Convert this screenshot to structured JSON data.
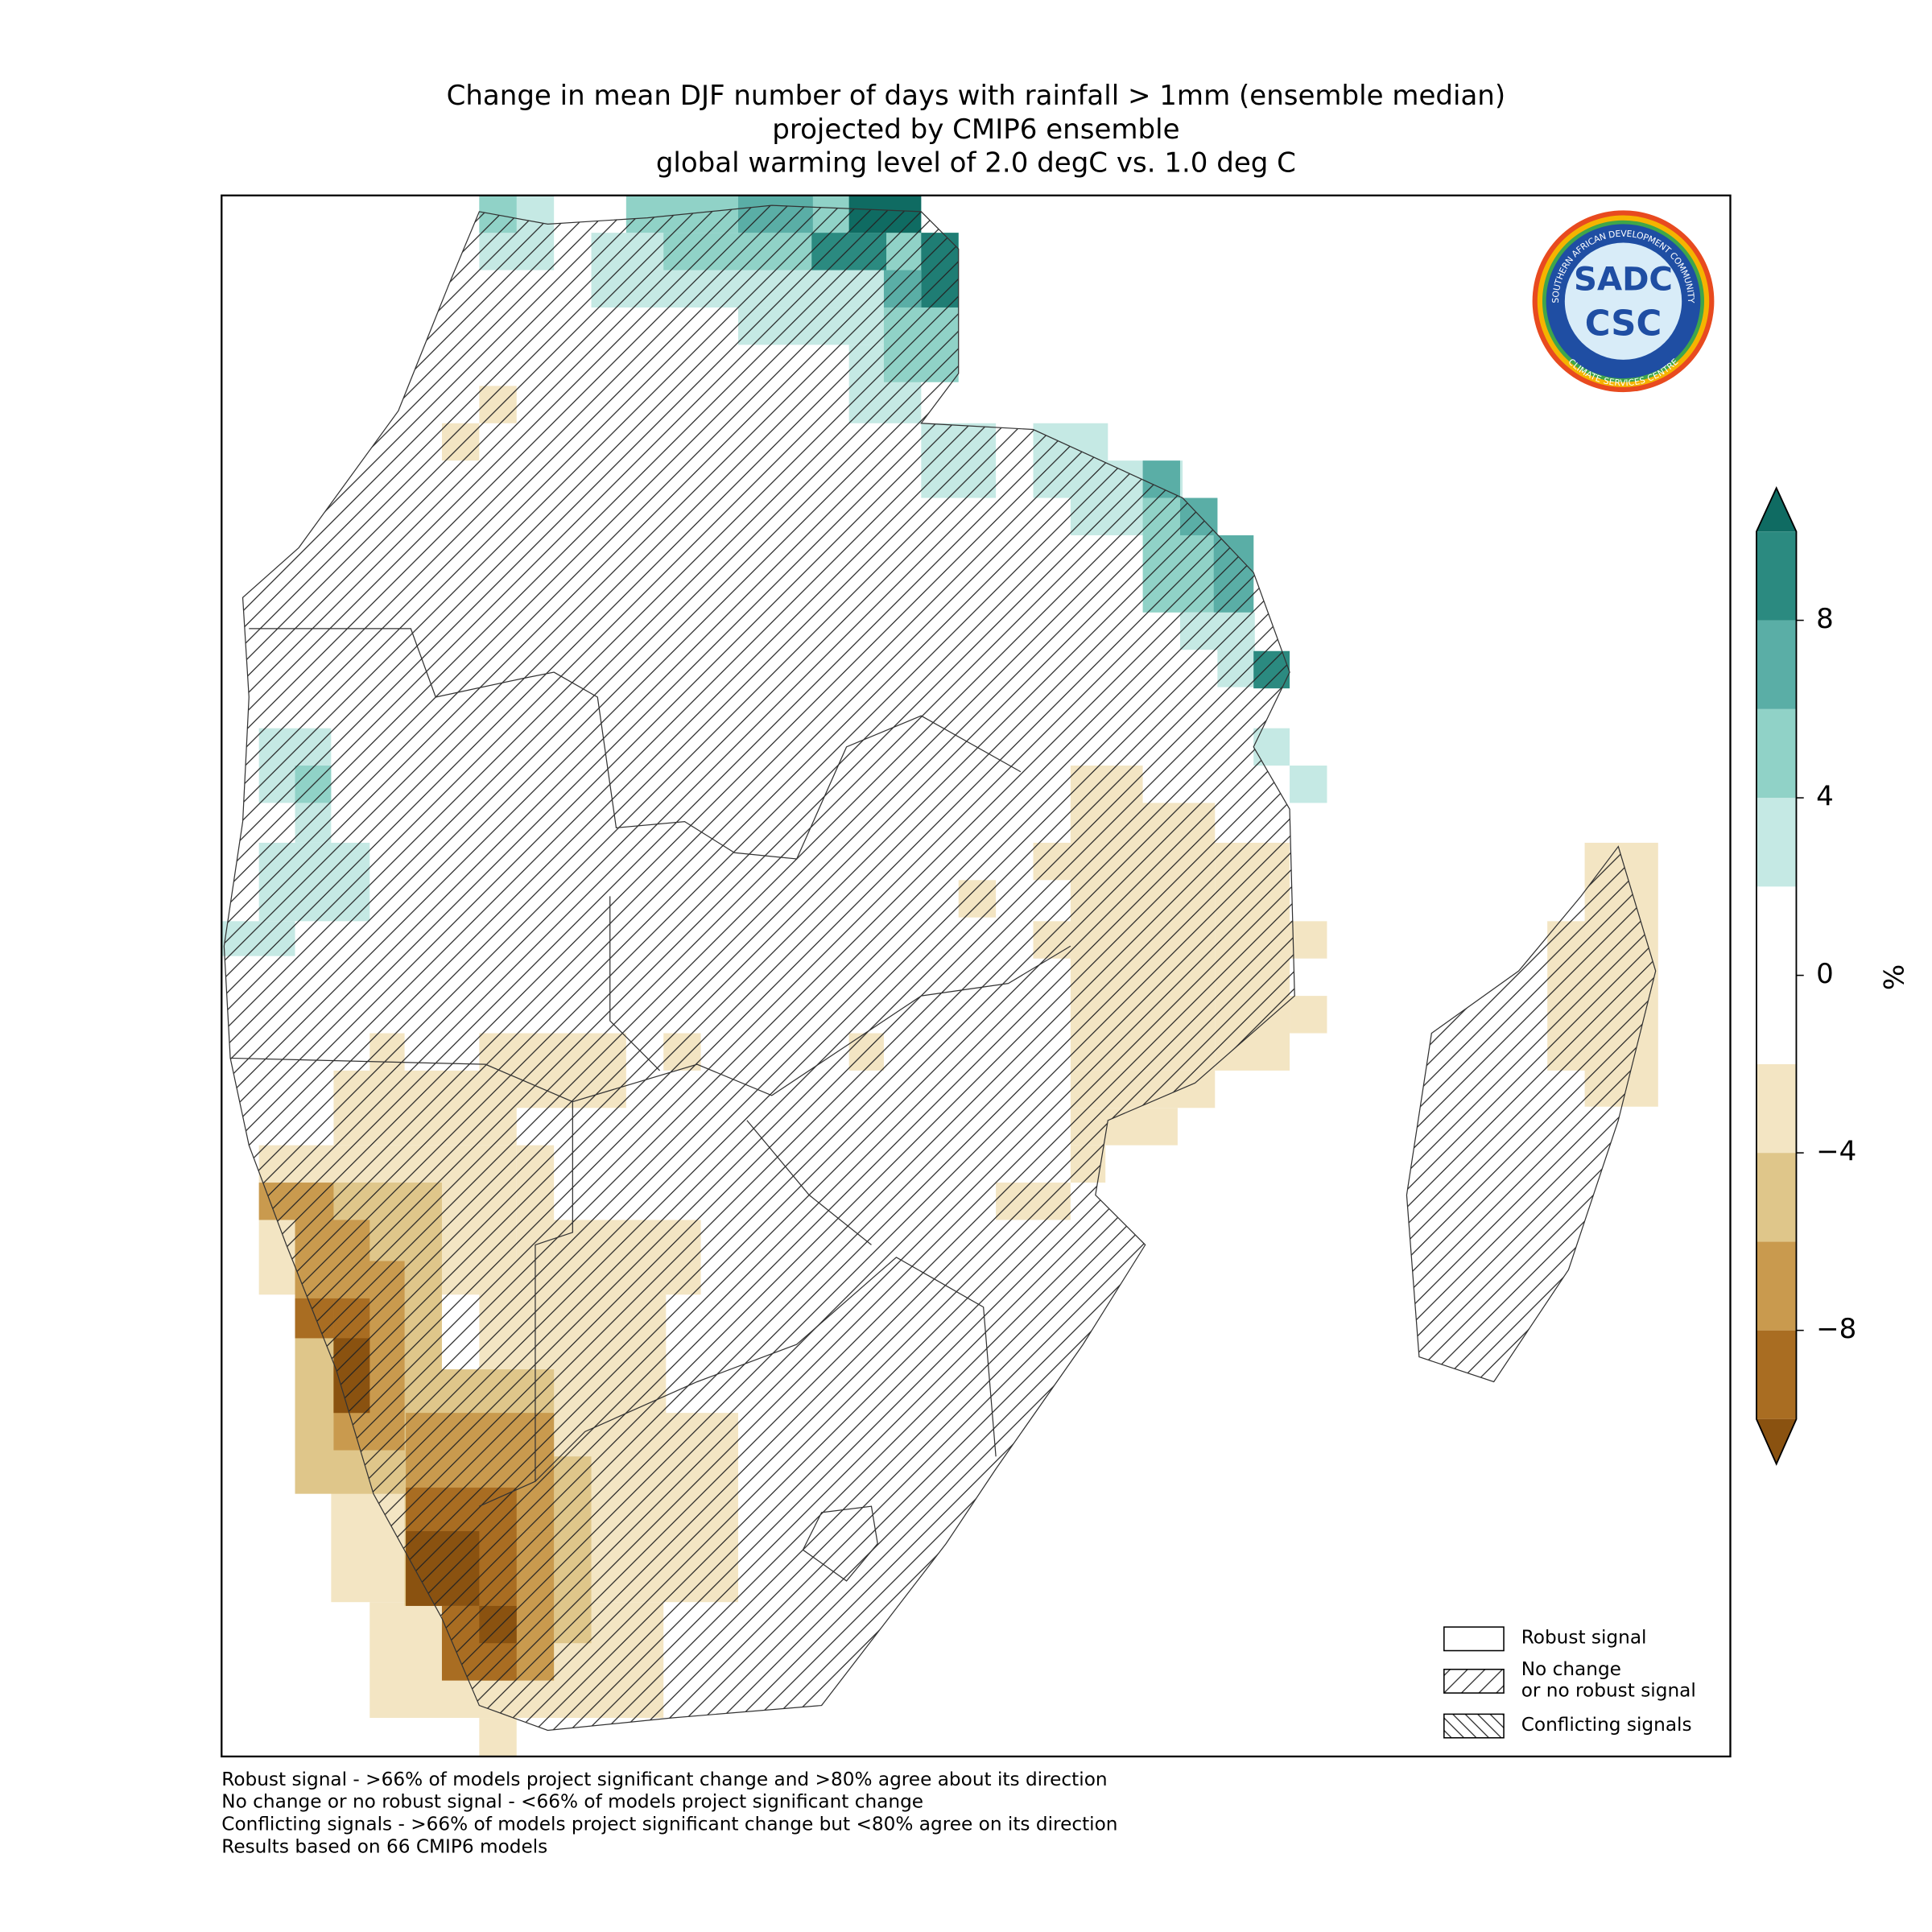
{
  "title": {
    "lines": [
      "Change in mean DJF number of days with rainfall > 1mm (ensemble median)",
      "projected by CMIP6 ensemble",
      "global warming level of 2.0 degC vs. 1.0 deg C"
    ]
  },
  "colorbar": {
    "label": "%",
    "lim": [
      -10,
      10
    ],
    "levels": [
      -10,
      -8,
      -6,
      -4,
      -2,
      2,
      4,
      6,
      8,
      10
    ],
    "colors": [
      "#a96d22",
      "#c99a4e",
      "#dfc68a",
      "#f3e5c3",
      "#ffffff",
      "#c5e9e4",
      "#90d2c7",
      "#5aaea6",
      "#2b8a80"
    ],
    "under_color": "#8a5210",
    "over_color": "#0f6b62",
    "ticks": [
      {
        "value": -8,
        "label": "−8"
      },
      {
        "value": -4,
        "label": "−4"
      },
      0,
      4,
      8
    ]
  },
  "legend": [
    {
      "label": [
        "Robust signal"
      ],
      "hatch": "none"
    },
    {
      "label": [
        "No change",
        "or no robust signal"
      ],
      "hatch": "forward"
    },
    {
      "label": [
        "Conflicting signals"
      ],
      "hatch": "back"
    }
  ],
  "footnotes": [
    "Robust signal - >66% of models project significant change and >80% agree about its direction",
    "No change or no robust signal - <66% of models project significant change",
    "Conflicting signals - >66% of models project significant change but <80% agree on its direction",
    "Results based on 66 CMIP6 models"
  ],
  "logo": {
    "top": "SADC",
    "bottom": "CSC",
    "ring_top": "SOUTHERN AFRICAN DEVELOPMENT COMMUNITY",
    "ring_bottom": "CLIMATE SERVICES CENTRE"
  }
}
